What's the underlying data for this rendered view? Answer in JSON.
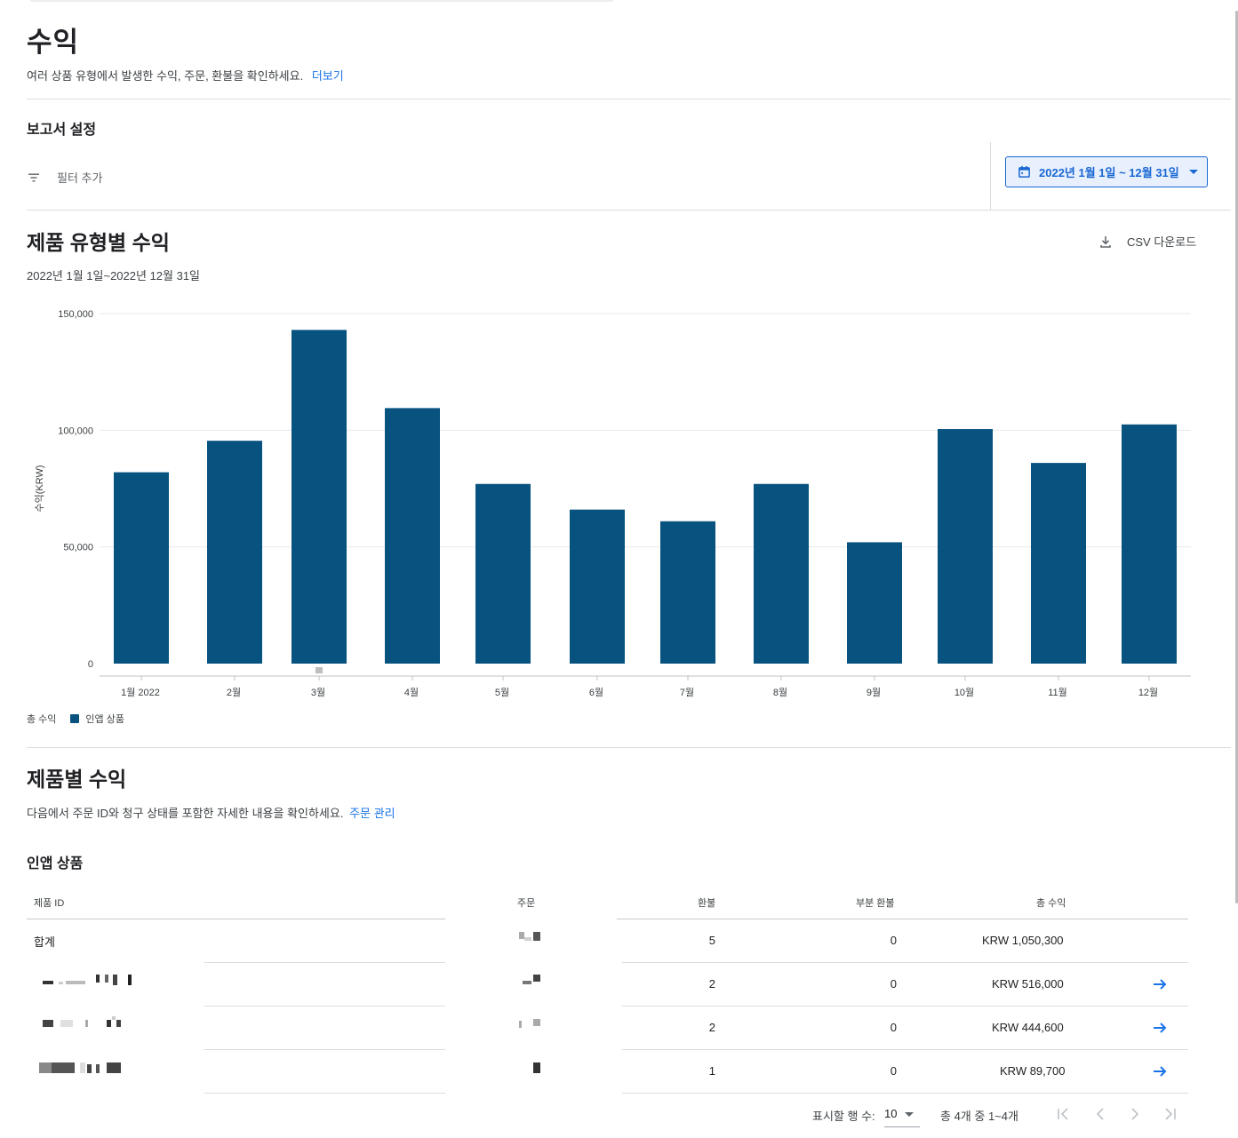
{
  "header": {
    "title": "수익",
    "description": "여러 상품 유형에서 발생한 수익, 주문, 환불을 확인하세요.",
    "learn_more": "더보기"
  },
  "report_settings": {
    "title": "보고서 설정",
    "add_filter": "필터 추가",
    "date_range": "2022년 1월 1일 ~ 12월 31일"
  },
  "chart_section": {
    "title": "제품 유형별 수익",
    "csv_download": "CSV 다운로드",
    "range_text": "2022년 1월 1일~2022년 12월 31일",
    "legend_total": "총 수익",
    "legend_series": "인앱 상품"
  },
  "chart_data": {
    "type": "bar",
    "categories": [
      "1월 2022",
      "2월",
      "3월",
      "4월",
      "5월",
      "6월",
      "7월",
      "8월",
      "9월",
      "10월",
      "11월",
      "12월"
    ],
    "series": [
      {
        "name": "인앱 상품",
        "values": [
          82000,
          95500,
          143000,
          109500,
          77000,
          66000,
          61000,
          77000,
          52000,
          100500,
          86000,
          102500
        ]
      }
    ],
    "title": "",
    "xlabel": "",
    "ylabel": "수익(KRW)",
    "ylim": [
      0,
      150000
    ],
    "yticks": [
      0,
      50000,
      100000,
      150000
    ],
    "ytick_labels": [
      "0",
      "50,000",
      "100,000",
      "150,000"
    ],
    "grid": true,
    "bar_color": "#07527f",
    "legend_position": "bottom-left"
  },
  "products": {
    "title": "제품별 수익",
    "description": "다음에서 주문 ID와 청구 상태를 포함한 자세한 내용을 확인하세요.",
    "manage_orders": "주문 관리",
    "subsection": "인앱 상품",
    "columns": [
      "제품 ID",
      "주문",
      "환불",
      "부분 환불",
      "총 수익"
    ],
    "rows": [
      {
        "id": "합계",
        "refunds": "5",
        "partial": "0",
        "revenue": "KRW 1,050,300"
      },
      {
        "id": "",
        "refunds": "2",
        "partial": "0",
        "revenue": "KRW 516,000"
      },
      {
        "id": "",
        "refunds": "2",
        "partial": "0",
        "revenue": "KRW 444,600"
      },
      {
        "id": "",
        "refunds": "1",
        "partial": "0",
        "revenue": "KRW 89,700"
      }
    ]
  },
  "pagination": {
    "rows_label": "표시할 행 수:",
    "rows_value": "10",
    "range_text": "총 4개 중 1~4개"
  },
  "icons": {
    "filter": "filter-icon",
    "calendar": "calendar-icon",
    "dropdown": "chevron-down-icon",
    "download": "download-icon",
    "row_link": "arrow-right-icon",
    "first_page": "first-page-icon",
    "prev_page": "chevron-left-icon",
    "next_page": "chevron-right-icon",
    "last_page": "last-page-icon"
  },
  "colors": {
    "accent": "#1a73e8",
    "bar": "#07527f",
    "date_button_bg": "#e8f0fe"
  }
}
